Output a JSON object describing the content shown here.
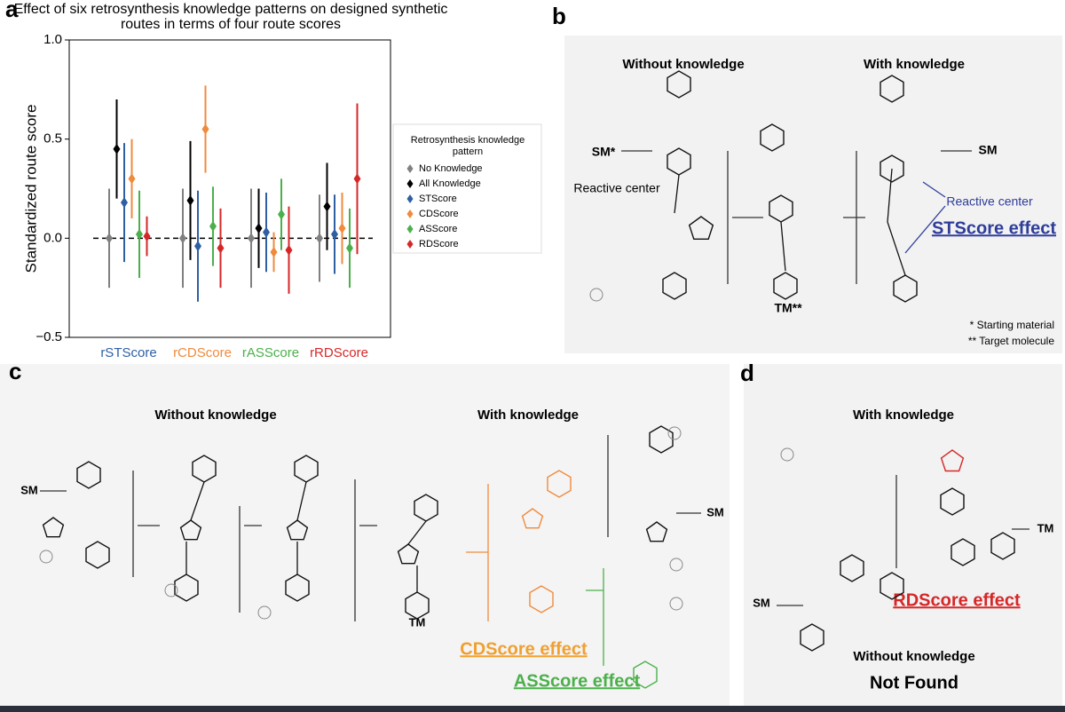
{
  "chart_data": {
    "type": "errorbar",
    "title": "Effect of six retrosynthesis knowledge patterns on designed synthetic routes in terms of four route scores",
    "ylabel": "Standardized route score",
    "categories": [
      "rSTScore",
      "rCDScore",
      "rASScore",
      "rRDScore"
    ],
    "category_colors": [
      "#2e5fa3",
      "#f08a3c",
      "#4bb04b",
      "#d62728"
    ],
    "legend_title": "Retrosynthesis knowledge pattern",
    "series": [
      {
        "name": "No Knowledge",
        "color": "#808080",
        "values": [
          0,
          0,
          0,
          0
        ],
        "errors": [
          0.25,
          0.25,
          0.25,
          0.22
        ]
      },
      {
        "name": "All Knowledge",
        "color": "#000000",
        "values": [
          0.45,
          0.19,
          0.05,
          0.16
        ],
        "errors": [
          0.25,
          0.3,
          0.2,
          0.22
        ]
      },
      {
        "name": "STScore",
        "color": "#2e5fa3",
        "values": [
          0.18,
          -0.04,
          0.03,
          0.02
        ],
        "errors": [
          0.3,
          0.28,
          0.2,
          0.2
        ]
      },
      {
        "name": "CDScore",
        "color": "#f08a3c",
        "values": [
          0.3,
          0.55,
          -0.07,
          0.05
        ],
        "errors": [
          0.2,
          0.22,
          0.1,
          0.18
        ]
      },
      {
        "name": "ASScore",
        "color": "#4bb04b",
        "values": [
          0.02,
          0.06,
          0.12,
          -0.05
        ],
        "errors": [
          0.22,
          0.2,
          0.18,
          0.2
        ]
      },
      {
        "name": "RDScore",
        "color": "#d62728",
        "values": [
          0.01,
          -0.05,
          -0.06,
          0.3
        ],
        "errors": [
          0.1,
          0.2,
          0.22,
          0.38
        ]
      }
    ],
    "reference_line": 0,
    "ylim": [
      -0.5,
      1.0
    ],
    "yticks": [
      {
        "value": -0.5,
        "label": "−0.5"
      },
      {
        "value": 0,
        "label": "0.0"
      },
      0.5,
      {
        "value": 1.0,
        "label": "1.0"
      }
    ]
  },
  "panel_labels": [
    "a",
    "b",
    "c",
    "d"
  ],
  "panel_b": {
    "without": "Without knowledge",
    "with": "With knowledge",
    "sm_left": "SM*",
    "reactive_left": "Reactive center",
    "tm": "TM**",
    "sm_right": "SM",
    "reactive_right": "Reactive center",
    "effect": "STScore effect",
    "footnotes": [
      "* Starting material",
      "** Target molecule"
    ]
  },
  "panel_c": {
    "without": "Without knowledge",
    "with": "With knowledge",
    "sm_left": "SM",
    "tm": "TM",
    "sm_right": "SM",
    "effect_cd": "CDScore effect",
    "effect_as": "ASScore effect"
  },
  "panel_d": {
    "with": "With knowledge",
    "effect": "RDScore effect",
    "without": "Without knowledge",
    "not_found": "Not Found",
    "sm": "SM",
    "tm": "TM"
  }
}
